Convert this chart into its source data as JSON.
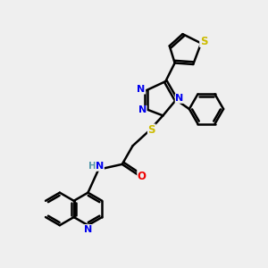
{
  "bg_color": "#efefef",
  "bond_color": "#000000",
  "bond_width": 1.8,
  "atom_colors": {
    "N": "#0000ee",
    "S": "#ccbb00",
    "O": "#ee0000",
    "C": "#000000",
    "H": "#5599aa"
  },
  "dbl_sep": 0.09
}
